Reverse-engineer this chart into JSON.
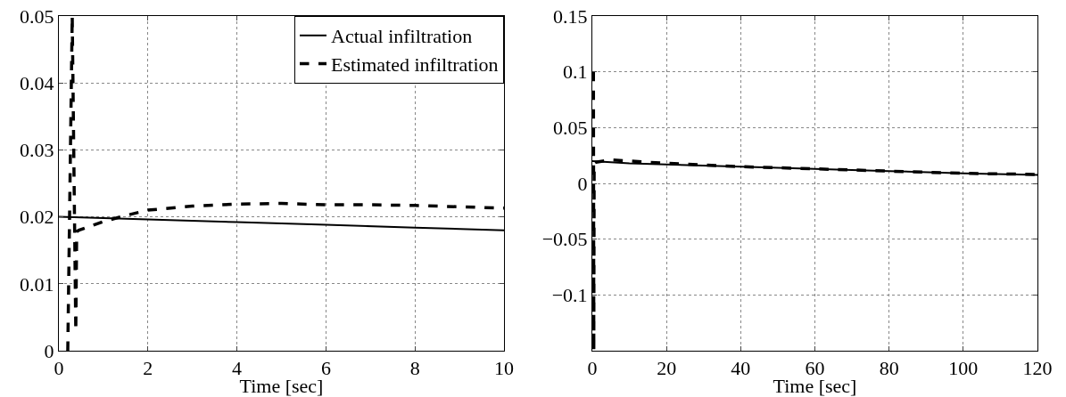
{
  "chart_data": [
    {
      "type": "line",
      "xlabel": "Time [sec]",
      "xlim": [
        0,
        10
      ],
      "xticks": [
        0,
        2,
        4,
        6,
        8,
        10
      ],
      "ylim": [
        0,
        0.05
      ],
      "yticks": [
        0,
        0.01,
        0.02,
        0.03,
        0.04,
        0.05
      ],
      "grid": true,
      "legend": "top right",
      "series": [
        {
          "name": "Actual infiltration",
          "color": "#000000",
          "line_style": "solid",
          "x": [
            0,
            2,
            4,
            6,
            8,
            10
          ],
          "values": [
            0.02,
            0.0196,
            0.0192,
            0.0188,
            0.0184,
            0.018
          ]
        },
        {
          "name": "Estimated infiltration",
          "color": "#000000",
          "line_style": "dashed",
          "x": [
            0.2,
            0.3,
            0.38,
            0.4,
            0.45,
            0.7,
            1,
            1.5,
            2,
            3,
            4,
            5,
            6,
            7,
            8,
            9,
            10
          ],
          "values": [
            0,
            0.05,
            0.003,
            0.0178,
            0.018,
            0.0186,
            0.0193,
            0.0202,
            0.021,
            0.0216,
            0.0219,
            0.022,
            0.0218,
            0.0218,
            0.0217,
            0.0215,
            0.0213
          ]
        }
      ]
    },
    {
      "type": "line",
      "xlabel": "Time [sec]",
      "xlim": [
        0,
        120
      ],
      "xticks": [
        0,
        20,
        40,
        60,
        80,
        100,
        120
      ],
      "ylim": [
        -0.15,
        0.15
      ],
      "yticks": [
        -0.1,
        -0.05,
        0,
        0.05,
        0.1,
        0.15
      ],
      "grid": true,
      "series": [
        {
          "color": "#000000",
          "line_style": "solid",
          "x": [
            0,
            10,
            20,
            40,
            60,
            80,
            100,
            120
          ],
          "values": [
            0.02,
            0.018,
            0.017,
            0.015,
            0.013,
            0.011,
            0.009,
            0.0075
          ]
        },
        {
          "color": "#000000",
          "line_style": "dashed",
          "x": [
            0.3,
            0.4,
            0.5,
            1,
            5,
            20,
            40,
            60,
            80,
            100,
            120
          ],
          "values": [
            0.1,
            -0.15,
            0.018,
            0.019,
            0.021,
            0.018,
            0.015,
            0.013,
            0.011,
            0.009,
            0.008
          ]
        }
      ]
    }
  ]
}
